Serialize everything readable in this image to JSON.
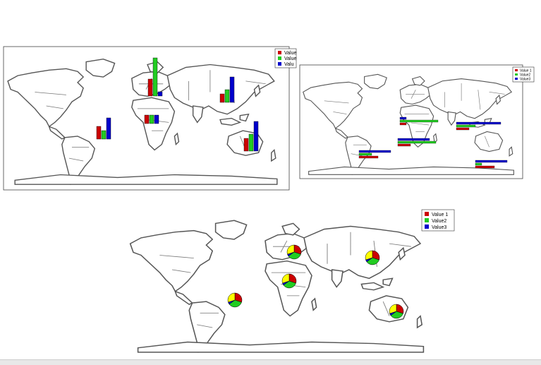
{
  "legends": {
    "panel1": {
      "labels": [
        "Value",
        "Value",
        "Valu"
      ]
    },
    "panel2": {
      "labels": [
        "Value 1",
        "Value2",
        "Value3"
      ]
    },
    "panel3": {
      "labels": [
        "Value 1",
        "Value2",
        "Value3"
      ]
    }
  },
  "colors": {
    "value1": "#cc0000",
    "value2": "#22cc22",
    "value3": "#0000cc",
    "pie_extra": "#ffff00"
  },
  "chart_data": [
    {
      "type": "bar",
      "panel": "top-left",
      "orientation": "vertical",
      "series": [
        {
          "name": "Value",
          "values": [
            3,
            4,
            2,
            2,
            3,
            2
          ]
        },
        {
          "name": "Value",
          "values": [
            2,
            9,
            2,
            3,
            4,
            1
          ]
        },
        {
          "name": "Valu",
          "values": [
            5,
            1,
            2,
            6,
            7,
            5
          ]
        }
      ],
      "locations": [
        "South America",
        "Europe",
        "West Africa",
        "East Asia",
        "Australia",
        "North Africa"
      ]
    },
    {
      "type": "bar",
      "panel": "top-right",
      "orientation": "horizontal",
      "series": [
        {
          "name": "Value 1",
          "values": [
            3,
            1,
            2,
            2,
            3
          ]
        },
        {
          "name": "Value2",
          "values": [
            2,
            6,
            6,
            3,
            1
          ]
        },
        {
          "name": "Value3",
          "values": [
            5,
            1,
            5,
            7,
            5
          ]
        }
      ],
      "locations": [
        "South America",
        "Europe",
        "Africa",
        "Asia",
        "Australia"
      ]
    },
    {
      "type": "pie",
      "panel": "bottom",
      "slices_per_location": [
        {
          "location": "Europe",
          "slices": [
            0.3,
            0.35,
            0.05,
            0.3
          ]
        },
        {
          "location": "East Asia",
          "slices": [
            0.3,
            0.35,
            0.05,
            0.3
          ]
        },
        {
          "location": "West Africa",
          "slices": [
            0.3,
            0.35,
            0.05,
            0.3
          ]
        },
        {
          "location": "South America",
          "slices": [
            0.3,
            0.35,
            0.05,
            0.3
          ]
        },
        {
          "location": "Australia",
          "slices": [
            0.3,
            0.35,
            0.05,
            0.3
          ]
        }
      ]
    }
  ]
}
